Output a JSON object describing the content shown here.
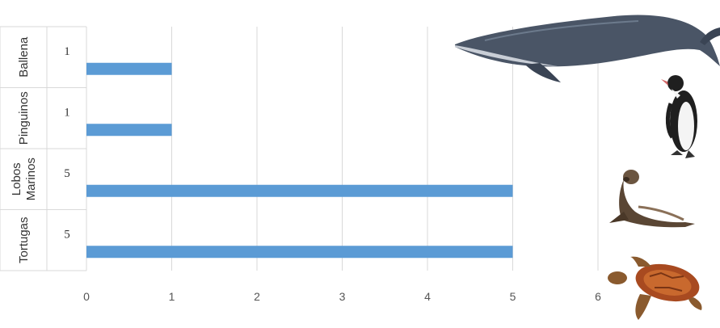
{
  "chart_data": {
    "type": "bar",
    "orientation": "horizontal",
    "categories": [
      "Ballena",
      "Pinguinos",
      "Lobos Marinos",
      "Tortugas"
    ],
    "category_lines": [
      [
        "Ballena"
      ],
      [
        "Pinguinos"
      ],
      [
        "Lobos",
        "Marinos"
      ],
      [
        "Tortugas"
      ]
    ],
    "values": [
      1,
      1,
      5,
      5
    ],
    "value_labels": [
      "1",
      "1",
      "5",
      "5"
    ],
    "xlim": [
      0,
      6
    ],
    "x_ticks": [
      "0",
      "1",
      "2",
      "3",
      "4",
      "5",
      "6"
    ],
    "grid": true,
    "bar_color": "#5b9bd5",
    "grid_color": "#d9d9d9",
    "title": "",
    "xlabel": "",
    "ylabel": ""
  },
  "illustrations": [
    "whale-icon",
    "penguin-icon",
    "sea-lion-icon",
    "turtle-icon"
  ]
}
